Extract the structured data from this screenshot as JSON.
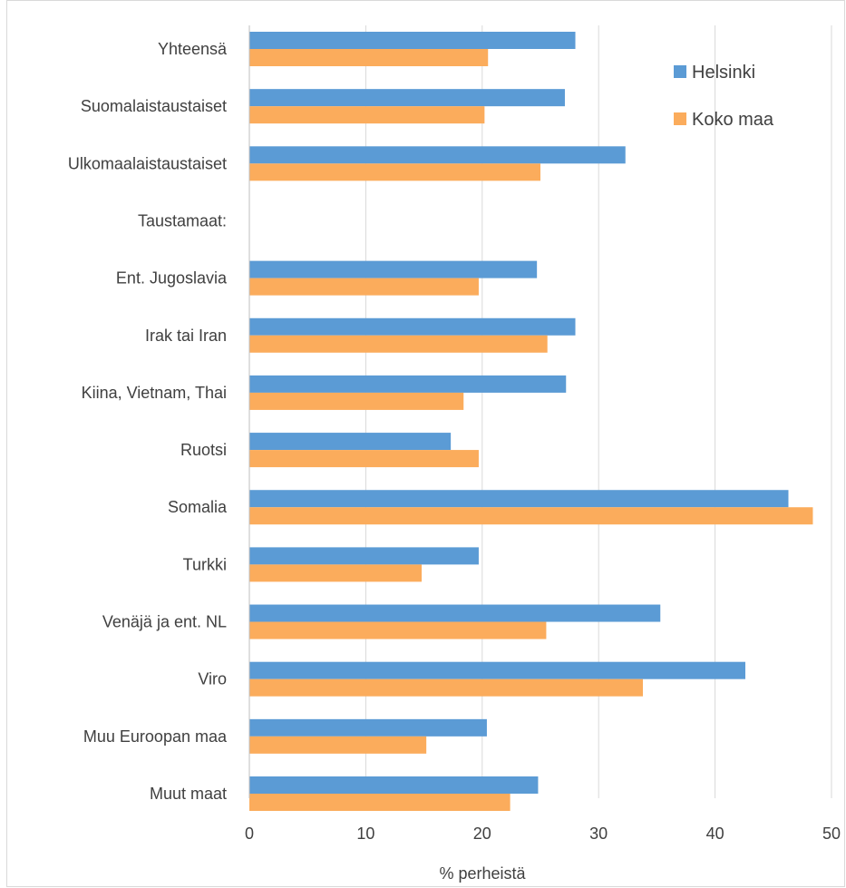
{
  "chart_data": {
    "type": "bar",
    "orientation": "horizontal",
    "title": "",
    "xlabel": "% perheistä",
    "ylabel": "",
    "xlim": [
      0,
      50
    ],
    "xticks": [
      0,
      10,
      20,
      30,
      40,
      50
    ],
    "grid": "vertical",
    "legend_position": "top-right",
    "categories": [
      "Yhteensä",
      "Suomalaistaustaiset",
      "Ulkomaalaistaustaiset",
      "Taustamaat:",
      "Ent. Jugoslavia",
      "Irak tai Iran",
      "Kiina, Vietnam, Thai",
      "Ruotsi",
      "Somalia",
      "Turkki",
      "Venäjä ja ent. NL",
      "Viro",
      "Muu Euroopan maa",
      "Muut maat"
    ],
    "series": [
      {
        "name": "Helsinki",
        "color": "#5b9bd5",
        "values": [
          28.0,
          27.1,
          32.3,
          null,
          24.7,
          28.0,
          27.2,
          17.3,
          46.3,
          19.7,
          35.3,
          42.6,
          20.4,
          24.8
        ]
      },
      {
        "name": "Koko maa",
        "color": "#fbac5c",
        "values": [
          20.5,
          20.2,
          25.0,
          null,
          19.7,
          25.6,
          18.4,
          19.7,
          48.4,
          14.8,
          25.5,
          33.8,
          15.2,
          22.4
        ]
      }
    ]
  }
}
